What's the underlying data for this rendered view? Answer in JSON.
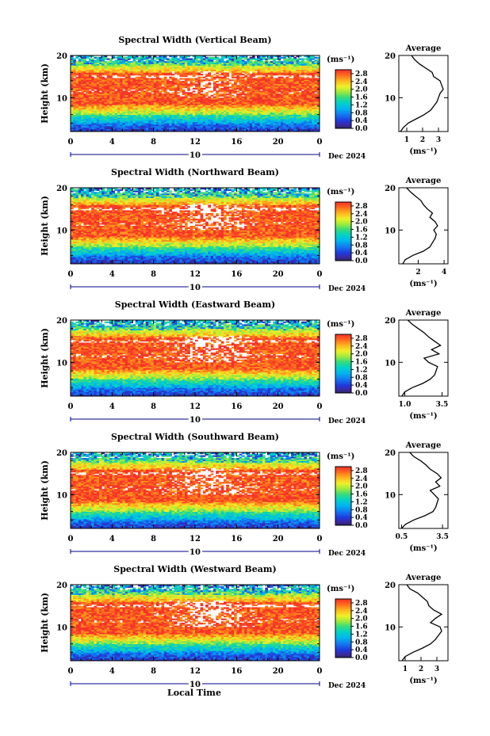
{
  "figure": {
    "x_common_label": "Local Time",
    "colorbar_unit": "(ms⁻¹)",
    "avg_unit": "(ms⁻¹)",
    "y_axis_label": "Height (km)",
    "date_label": "Dec 2024",
    "day_marker": "10"
  },
  "chart_data": [
    {
      "type": "heatmap",
      "title": "Spectral Width (Vertical Beam)",
      "ylabel": "Height (km)",
      "xlabel": "Local Time",
      "x_ticks": [
        "0",
        "4",
        "8",
        "12",
        "16",
        "20",
        "0"
      ],
      "y_ticks": [
        "10",
        "20"
      ],
      "xlim": [
        0,
        24
      ],
      "ylim": [
        2,
        20
      ],
      "colorbar": {
        "unit": "(ms⁻¹)",
        "ticks": [
          "0.0",
          "0.4",
          "0.8",
          "1.2",
          "1.6",
          "2.0",
          "2.4",
          "2.8"
        ],
        "range": [
          0,
          3.0
        ]
      },
      "date_label": "Dec 2024",
      "day_marker": "10",
      "average": {
        "title": "Average",
        "xlabel": "(ms⁻¹)",
        "x_ticks": [
          "1",
          "2",
          "3"
        ],
        "xlim": [
          0.5,
          3.6
        ],
        "y_ticks": [
          "10",
          "20"
        ],
        "profile": [
          [
            0.6,
            2
          ],
          [
            0.8,
            3
          ],
          [
            1.1,
            4
          ],
          [
            1.6,
            5
          ],
          [
            2.1,
            6
          ],
          [
            2.5,
            7
          ],
          [
            2.7,
            8
          ],
          [
            2.9,
            9
          ],
          [
            3.0,
            10
          ],
          [
            3.1,
            11
          ],
          [
            3.3,
            12
          ],
          [
            3.2,
            13
          ],
          [
            3.1,
            14
          ],
          [
            2.7,
            15
          ],
          [
            2.6,
            16
          ],
          [
            2.2,
            17
          ],
          [
            1.8,
            18
          ],
          [
            1.5,
            19
          ],
          [
            1.3,
            20
          ]
        ]
      },
      "field": {
        "seed": 11,
        "hole_level": 0.35
      }
    },
    {
      "type": "heatmap",
      "title": "Spectral Width (Northward Beam)",
      "ylabel": "Height (km)",
      "xlabel": "Local Time",
      "x_ticks": [
        "0",
        "4",
        "8",
        "12",
        "16",
        "20",
        "0"
      ],
      "y_ticks": [
        "10",
        "20"
      ],
      "xlim": [
        0,
        24
      ],
      "ylim": [
        2,
        20
      ],
      "colorbar": {
        "unit": "(ms⁻¹)",
        "ticks": [
          "0.0",
          "0.4",
          "0.8",
          "1.2",
          "1.6",
          "2.0",
          "2.4",
          "2.8"
        ],
        "range": [
          0,
          3.0
        ]
      },
      "date_label": "Dec 2024",
      "day_marker": "10",
      "average": {
        "title": "Average",
        "xlabel": "(ms⁻¹)",
        "x_ticks": [
          "2",
          "4"
        ],
        "xlim": [
          0.5,
          4.3
        ],
        "y_ticks": [
          "10",
          "20"
        ],
        "profile": [
          [
            0.8,
            2
          ],
          [
            1.0,
            3
          ],
          [
            1.6,
            4
          ],
          [
            2.4,
            5
          ],
          [
            2.9,
            6
          ],
          [
            3.1,
            7
          ],
          [
            3.3,
            8
          ],
          [
            3.4,
            9
          ],
          [
            3.2,
            10
          ],
          [
            3.5,
            11
          ],
          [
            3.3,
            12
          ],
          [
            2.9,
            13
          ],
          [
            3.1,
            14
          ],
          [
            2.7,
            15
          ],
          [
            2.4,
            16
          ],
          [
            2.2,
            17
          ],
          [
            1.8,
            18
          ],
          [
            1.4,
            19
          ],
          [
            1.1,
            20
          ]
        ]
      },
      "field": {
        "seed": 23,
        "hole_level": 0.45
      }
    },
    {
      "type": "heatmap",
      "title": "Spectral Width (Eastward Beam)",
      "ylabel": "Height (km)",
      "xlabel": "Local Time",
      "x_ticks": [
        "0",
        "4",
        "8",
        "12",
        "16",
        "20",
        "0"
      ],
      "y_ticks": [
        "10",
        "20"
      ],
      "xlim": [
        0,
        24
      ],
      "ylim": [
        2,
        20
      ],
      "colorbar": {
        "unit": "(ms⁻¹)",
        "ticks": [
          "0.0",
          "0.4",
          "0.8",
          "1.2",
          "1.6",
          "2.0",
          "2.4",
          "2.8"
        ],
        "range": [
          0,
          3.0
        ]
      },
      "date_label": "Dec 2024",
      "day_marker": "10",
      "average": {
        "title": "Average",
        "xlabel": "(ms⁻¹)",
        "x_ticks": [
          "1.0",
          "3.5"
        ],
        "xlim": [
          0.6,
          3.9
        ],
        "y_ticks": [
          "10",
          "20"
        ],
        "profile": [
          [
            0.8,
            2
          ],
          [
            1.0,
            3
          ],
          [
            1.5,
            4
          ],
          [
            2.2,
            5
          ],
          [
            2.7,
            6
          ],
          [
            3.0,
            7
          ],
          [
            3.1,
            8
          ],
          [
            3.2,
            9
          ],
          [
            2.6,
            10
          ],
          [
            2.3,
            11
          ],
          [
            3.3,
            12
          ],
          [
            2.8,
            13
          ],
          [
            3.4,
            14
          ],
          [
            3.0,
            15
          ],
          [
            2.6,
            16
          ],
          [
            2.3,
            17
          ],
          [
            1.9,
            18
          ],
          [
            1.5,
            19
          ],
          [
            1.2,
            20
          ]
        ]
      },
      "field": {
        "seed": 37,
        "hole_level": 0.55
      }
    },
    {
      "type": "heatmap",
      "title": "Spectral Width (Southward Beam)",
      "ylabel": "Height (km)",
      "xlabel": "Local Time",
      "x_ticks": [
        "0",
        "4",
        "8",
        "12",
        "16",
        "20",
        "0"
      ],
      "y_ticks": [
        "10",
        "20"
      ],
      "xlim": [
        0,
        24
      ],
      "ylim": [
        2,
        20
      ],
      "colorbar": {
        "unit": "(ms⁻¹)",
        "ticks": [
          "0.0",
          "0.4",
          "0.8",
          "1.2",
          "1.6",
          "2.0",
          "2.4",
          "2.8"
        ],
        "range": [
          0,
          3.0
        ]
      },
      "date_label": "Dec 2024",
      "day_marker": "10",
      "average": {
        "title": "Average",
        "xlabel": "(ms⁻¹)",
        "x_ticks": [
          "0.5",
          "3.5"
        ],
        "xlim": [
          0.3,
          3.9
        ],
        "y_ticks": [
          "10",
          "20"
        ],
        "profile": [
          [
            0.5,
            2
          ],
          [
            0.8,
            3
          ],
          [
            1.4,
            4
          ],
          [
            2.2,
            5
          ],
          [
            2.8,
            6
          ],
          [
            3.0,
            7
          ],
          [
            3.1,
            8
          ],
          [
            3.2,
            9
          ],
          [
            2.9,
            10
          ],
          [
            2.6,
            11
          ],
          [
            3.3,
            12
          ],
          [
            3.0,
            13
          ],
          [
            3.4,
            14
          ],
          [
            3.1,
            15
          ],
          [
            2.6,
            16
          ],
          [
            2.3,
            17
          ],
          [
            1.9,
            18
          ],
          [
            1.4,
            19
          ],
          [
            1.1,
            20
          ]
        ]
      },
      "field": {
        "seed": 51,
        "hole_level": 0.45
      }
    },
    {
      "type": "heatmap",
      "title": "Spectral Width (Westward Beam)",
      "ylabel": "Height (km)",
      "xlabel": "Local Time",
      "x_ticks": [
        "0",
        "4",
        "8",
        "12",
        "16",
        "20",
        "0"
      ],
      "y_ticks": [
        "10",
        "20"
      ],
      "xlim": [
        0,
        24
      ],
      "ylim": [
        2,
        20
      ],
      "colorbar": {
        "unit": "(ms⁻¹)",
        "ticks": [
          "0.0",
          "0.4",
          "0.8",
          "1.2",
          "1.6",
          "2.0",
          "2.4",
          "2.8"
        ],
        "range": [
          0,
          3.0
        ]
      },
      "date_label": "Dec 2024",
      "day_marker": "10",
      "average": {
        "title": "Average",
        "xlabel": "(ms⁻¹)",
        "x_ticks": [
          "1",
          "2",
          "3"
        ],
        "xlim": [
          0.6,
          3.7
        ],
        "y_ticks": [
          "10",
          "20"
        ],
        "profile": [
          [
            0.8,
            2
          ],
          [
            1.0,
            3
          ],
          [
            1.5,
            4
          ],
          [
            2.1,
            5
          ],
          [
            2.6,
            6
          ],
          [
            2.9,
            7
          ],
          [
            3.1,
            8
          ],
          [
            3.3,
            9
          ],
          [
            3.2,
            10
          ],
          [
            2.6,
            11
          ],
          [
            2.9,
            12
          ],
          [
            3.3,
            13
          ],
          [
            2.8,
            14
          ],
          [
            2.5,
            15
          ],
          [
            2.4,
            16
          ],
          [
            2.1,
            17
          ],
          [
            1.8,
            18
          ],
          [
            1.3,
            19
          ],
          [
            1.1,
            20
          ]
        ]
      },
      "field": {
        "seed": 67,
        "hole_level": 0.6
      }
    }
  ]
}
